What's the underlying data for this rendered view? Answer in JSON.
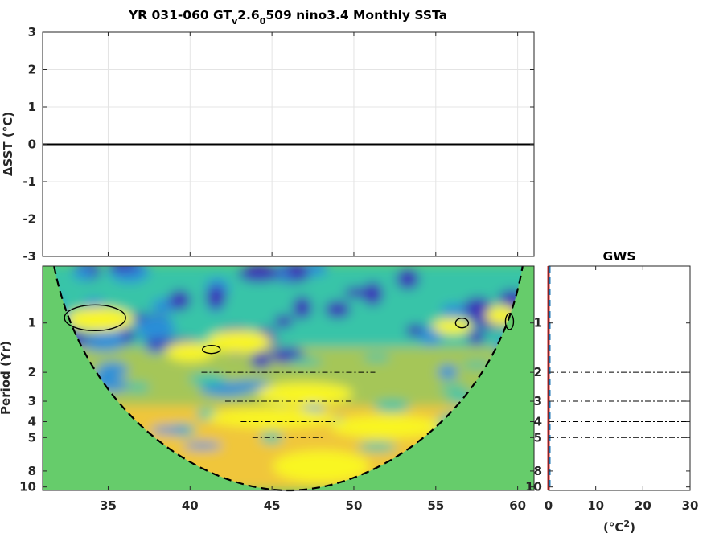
{
  "chart_data": [
    {
      "type": "line",
      "title_main": "YR 031-060 GT",
      "title_sub_v": "v",
      "title_mid": "2.6",
      "title_sub_0": "0",
      "title_tail": "509 nino3.4 Monthly SSTa",
      "ylabel": "ΔSST (°C)",
      "xlim": [
        31,
        61
      ],
      "ylim": [
        -3,
        3
      ],
      "x_ticks": [
        35,
        40,
        45,
        50,
        55,
        60
      ],
      "y_ticks": [
        3,
        2,
        1,
        0,
        -1,
        -2,
        -3
      ],
      "y_tick_labels": [
        "3",
        "2",
        "1",
        "0",
        "-1",
        "-2",
        "-3"
      ],
      "grid": true,
      "series": [
        {
          "x": [
            31,
            61
          ],
          "values": [
            0,
            0
          ]
        }
      ]
    },
    {
      "type": "heatmap",
      "ylabel": "Period (Yr)",
      "xlim": [
        31,
        61
      ],
      "x_ticks": [
        35,
        40,
        45,
        50,
        55,
        60
      ],
      "x_tick_labels": [
        "35",
        "40",
        "45",
        "50",
        "55",
        "60"
      ],
      "y_scale": "log",
      "period_range": [
        0.45,
        10.5
      ],
      "y_ticks": [
        1,
        2,
        3,
        4,
        5,
        8,
        10
      ],
      "y_tick_labels": [
        "1",
        "2",
        "3",
        "4",
        "5",
        "8",
        "10"
      ],
      "reference_periods": [
        2,
        3,
        4,
        5
      ],
      "cone_of_influence": {
        "left_x": 31.7,
        "right_x": 60.3,
        "bottom_x": 46,
        "max_period": 10.5
      },
      "cone_outside_color": "#66cc6b",
      "colors": {
        "low": "#3a2fb8",
        "mid_low": "#2a8fd8",
        "mid": "#38c4a8",
        "mid_high": "#f0c63a",
        "high": "#f9f620"
      }
    },
    {
      "type": "line",
      "title": "GWS",
      "xlabel": "(°C²)",
      "xlabel_base": "(°C",
      "xlabel_sup": "2",
      "xlabel_tail": ")",
      "xlim": [
        0,
        30
      ],
      "x_ticks": [
        0,
        10,
        20,
        30
      ],
      "x_tick_labels": [
        "0",
        "10",
        "20",
        "30"
      ],
      "y_scale": "log",
      "y_ticks": [
        1,
        2,
        3,
        4,
        5,
        8,
        10
      ],
      "y_tick_labels": [
        "1",
        "2",
        "3",
        "4",
        "5",
        "8",
        "10"
      ],
      "reference_periods": [
        2,
        3,
        4,
        5
      ],
      "series_colors": [
        "#d62728",
        "#1f77b4"
      ],
      "series": [
        {
          "values": [
            0,
            0
          ]
        },
        {
          "values": [
            0,
            0
          ]
        }
      ]
    }
  ]
}
